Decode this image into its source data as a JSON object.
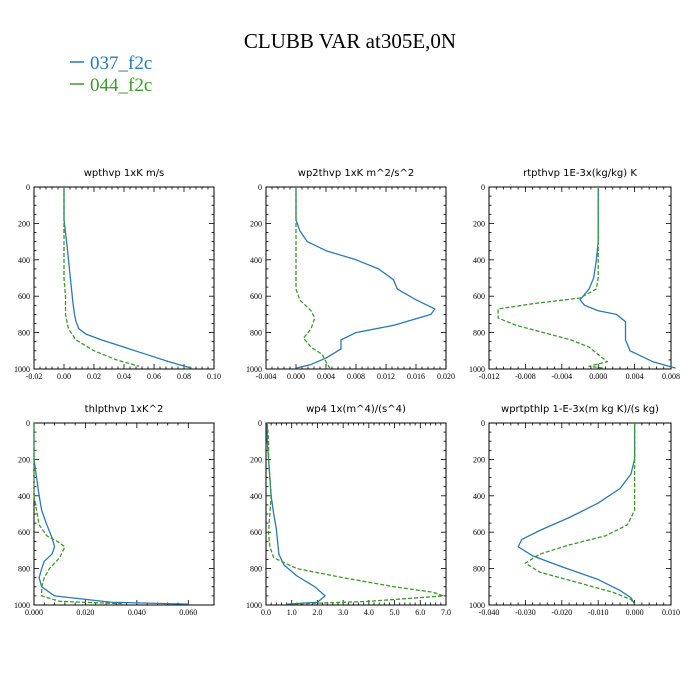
{
  "page": {
    "title": "CLUBB VAR at305E,0N"
  },
  "legend": [
    {
      "label": "037_f2c",
      "color": "#2a78b4"
    },
    {
      "label": "044_f2c",
      "color": "#3a9a2a"
    }
  ],
  "chart_data": [
    {
      "type": "line",
      "title": "wpthvp   1xK  m/s",
      "xlim": [
        -0.02,
        0.1
      ],
      "ylim": [
        1000,
        0
      ],
      "xticks": [
        -0.02,
        0.0,
        0.02,
        0.04,
        0.06,
        0.08,
        0.1
      ],
      "xtick_labels": [
        "-0.02",
        "0.00",
        "0.02",
        "0.04",
        "0.06",
        "0.08",
        "0.10"
      ],
      "yticks": [
        0,
        200,
        400,
        600,
        800,
        1000
      ],
      "ytick_labels": [
        "0",
        "200",
        "400",
        "600",
        "800",
        "1000"
      ],
      "series": [
        {
          "name": "037_f2c",
          "color": "#2a78b4",
          "dash": false,
          "points": [
            [
              0.0,
              0
            ],
            [
              0.0,
              100
            ],
            [
              0.0,
              180
            ],
            [
              0.001,
              250
            ],
            [
              0.002,
              320
            ],
            [
              0.003,
              400
            ],
            [
              0.004,
              480
            ],
            [
              0.005,
              560
            ],
            [
              0.006,
              640
            ],
            [
              0.007,
              700
            ],
            [
              0.008,
              740
            ],
            [
              0.01,
              780
            ],
            [
              0.015,
              810
            ],
            [
              0.025,
              840
            ],
            [
              0.04,
              880
            ],
            [
              0.055,
              920
            ],
            [
              0.07,
              960
            ],
            [
              0.085,
              995
            ]
          ]
        },
        {
          "name": "044_f2c",
          "color": "#3a9a2a",
          "dash": true,
          "points": [
            [
              0.0,
              0
            ],
            [
              0.0,
              100
            ],
            [
              0.0,
              200
            ],
            [
              0.0,
              300
            ],
            [
              0.0,
              400
            ],
            [
              0.0,
              500
            ],
            [
              0.001,
              600
            ],
            [
              0.001,
              700
            ],
            [
              0.003,
              780
            ],
            [
              0.008,
              840
            ],
            [
              0.02,
              900
            ],
            [
              0.035,
              950
            ],
            [
              0.05,
              985
            ]
          ]
        }
      ]
    },
    {
      "type": "line",
      "title": "wp2thvp   1xK  m^2/s^2",
      "xlim": [
        -0.004,
        0.02
      ],
      "ylim": [
        1000,
        0
      ],
      "xticks": [
        -0.004,
        0.0,
        0.004,
        0.008,
        0.012,
        0.016,
        0.02
      ],
      "xtick_labels": [
        "-0.004",
        "0.000",
        "0.004",
        "0.008",
        "0.012",
        "0.016",
        "0.020"
      ],
      "yticks": [
        0,
        200,
        400,
        600,
        800,
        1000
      ],
      "ytick_labels": [
        "0",
        "200",
        "400",
        "600",
        "800",
        "1000"
      ],
      "series": [
        {
          "name": "037_f2c",
          "color": "#2a78b4",
          "dash": false,
          "points": [
            [
              0.0,
              0
            ],
            [
              0.0,
              100
            ],
            [
              0.0,
              180
            ],
            [
              0.0005,
              240
            ],
            [
              0.0015,
              300
            ],
            [
              0.004,
              350
            ],
            [
              0.008,
              400
            ],
            [
              0.011,
              450
            ],
            [
              0.013,
              510
            ],
            [
              0.0135,
              560
            ],
            [
              0.016,
              620
            ],
            [
              0.0185,
              670
            ],
            [
              0.018,
              700
            ],
            [
              0.013,
              760
            ],
            [
              0.008,
              800
            ],
            [
              0.006,
              840
            ],
            [
              0.006,
              890
            ],
            [
              0.004,
              940
            ],
            [
              0.002,
              975
            ],
            [
              0.0,
              995
            ]
          ]
        },
        {
          "name": "044_f2c",
          "color": "#3a9a2a",
          "dash": true,
          "points": [
            [
              0.0,
              0
            ],
            [
              0.0,
              100
            ],
            [
              0.0,
              200
            ],
            [
              0.0,
              300
            ],
            [
              0.0,
              400
            ],
            [
              0.0,
              500
            ],
            [
              0.0,
              560
            ],
            [
              0.0005,
              620
            ],
            [
              0.002,
              680
            ],
            [
              0.0025,
              720
            ],
            [
              0.002,
              780
            ],
            [
              0.001,
              830
            ],
            [
              0.002,
              880
            ],
            [
              0.0035,
              920
            ],
            [
              0.004,
              960
            ],
            [
              0.0045,
              995
            ]
          ]
        }
      ]
    },
    {
      "type": "line",
      "title": "rtpthvp   1E-3x(kg/kg) K",
      "xlim": [
        -0.012,
        0.008
      ],
      "ylim": [
        1000,
        0
      ],
      "xticks": [
        -0.012,
        -0.008,
        -0.004,
        0.0,
        0.004,
        0.008
      ],
      "xtick_labels": [
        "-0.012",
        "-0.008",
        "-0.004",
        "0.000",
        "0.004",
        "0.008"
      ],
      "yticks": [
        0,
        200,
        400,
        600,
        800,
        1000
      ],
      "ytick_labels": [
        "0",
        "200",
        "400",
        "600",
        "800",
        "1000"
      ],
      "series": [
        {
          "name": "037_f2c",
          "color": "#2a78b4",
          "dash": false,
          "points": [
            [
              0.0,
              0
            ],
            [
              0.0,
              100
            ],
            [
              0.0,
              200
            ],
            [
              0.0,
              300
            ],
            [
              -0.0002,
              400
            ],
            [
              -0.0005,
              500
            ],
            [
              -0.001,
              560
            ],
            [
              -0.002,
              620
            ],
            [
              -0.0015,
              650
            ],
            [
              0.0,
              680
            ],
            [
              0.002,
              700
            ],
            [
              0.003,
              740
            ],
            [
              0.003,
              780
            ],
            [
              0.003,
              840
            ],
            [
              0.0035,
              900
            ],
            [
              0.006,
              960
            ],
            [
              0.0085,
              995
            ]
          ]
        },
        {
          "name": "044_f2c",
          "color": "#3a9a2a",
          "dash": true,
          "points": [
            [
              0.0,
              0
            ],
            [
              0.0,
              100
            ],
            [
              0.0,
              200
            ],
            [
              0.0,
              300
            ],
            [
              0.0,
              400
            ],
            [
              0.0,
              500
            ],
            [
              -0.0002,
              560
            ],
            [
              -0.002,
              610
            ],
            [
              -0.007,
              640
            ],
            [
              -0.011,
              670
            ],
            [
              -0.011,
              720
            ],
            [
              -0.009,
              760
            ],
            [
              -0.006,
              800
            ],
            [
              -0.003,
              840
            ],
            [
              -0.001,
              880
            ],
            [
              0.0,
              920
            ],
            [
              0.001,
              960
            ],
            [
              -0.001,
              985
            ],
            [
              0.0005,
              995
            ]
          ]
        }
      ]
    },
    {
      "type": "line",
      "title": "thlpthvp   1xK^2",
      "xlim": [
        0.0,
        0.07
      ],
      "ylim": [
        1000,
        0
      ],
      "xticks": [
        0.0,
        0.02,
        0.04,
        0.06
      ],
      "xtick_labels": [
        "0.000",
        "0.020",
        "0.040",
        "0.060"
      ],
      "yticks": [
        0,
        200,
        400,
        600,
        800,
        1000
      ],
      "ytick_labels": [
        "0",
        "200",
        "400",
        "600",
        "800",
        "1000"
      ],
      "series": [
        {
          "name": "037_f2c",
          "color": "#2a78b4",
          "dash": false,
          "points": [
            [
              0.0,
              0
            ],
            [
              0.0,
              200
            ],
            [
              0.001,
              300
            ],
            [
              0.002,
              400
            ],
            [
              0.003,
              480
            ],
            [
              0.005,
              560
            ],
            [
              0.007,
              630
            ],
            [
              0.008,
              680
            ],
            [
              0.007,
              720
            ],
            [
              0.004,
              760
            ],
            [
              0.003,
              800
            ],
            [
              0.002,
              850
            ],
            [
              0.003,
              900
            ],
            [
              0.008,
              950
            ],
            [
              0.03,
              985
            ],
            [
              0.06,
              995
            ]
          ]
        },
        {
          "name": "044_f2c",
          "color": "#3a9a2a",
          "dash": true,
          "points": [
            [
              0.0,
              0
            ],
            [
              0.0,
              200
            ],
            [
              0.0,
              300
            ],
            [
              0.0,
              400
            ],
            [
              0.001,
              480
            ],
            [
              0.002,
              560
            ],
            [
              0.005,
              620
            ],
            [
              0.009,
              650
            ],
            [
              0.012,
              680
            ],
            [
              0.01,
              740
            ],
            [
              0.006,
              800
            ],
            [
              0.004,
              850
            ],
            [
              0.003,
              900
            ],
            [
              0.003,
              950
            ],
            [
              0.01,
              980
            ],
            [
              0.035,
              993
            ]
          ]
        }
      ]
    },
    {
      "type": "line",
      "title": "wp4   1x(m^4)/(s^4)",
      "xlim": [
        0.0,
        7.0
      ],
      "ylim": [
        1000,
        0
      ],
      "xticks": [
        0.0,
        1.0,
        2.0,
        3.0,
        4.0,
        5.0,
        6.0,
        7.0
      ],
      "xtick_labels": [
        "0.0",
        "1.0",
        "2.0",
        "3.0",
        "4.0",
        "5.0",
        "6.0",
        "7.0"
      ],
      "yticks": [
        0,
        200,
        400,
        600,
        800,
        1000
      ],
      "ytick_labels": [
        "0",
        "200",
        "400",
        "600",
        "800",
        "1000"
      ],
      "series": [
        {
          "name": "037_f2c",
          "color": "#2a78b4",
          "dash": false,
          "points": [
            [
              0.05,
              0
            ],
            [
              0.05,
              100
            ],
            [
              0.1,
              200
            ],
            [
              0.15,
              300
            ],
            [
              0.2,
              400
            ],
            [
              0.3,
              500
            ],
            [
              0.4,
              580
            ],
            [
              0.45,
              650
            ],
            [
              0.5,
              720
            ],
            [
              0.7,
              780
            ],
            [
              1.2,
              840
            ],
            [
              1.9,
              900
            ],
            [
              2.3,
              950
            ],
            [
              2.0,
              985
            ],
            [
              0.8,
              995
            ]
          ]
        },
        {
          "name": "044_f2c",
          "color": "#3a9a2a",
          "dash": true,
          "points": [
            [
              0.05,
              0
            ],
            [
              0.1,
              100
            ],
            [
              0.1,
              200
            ],
            [
              0.15,
              300
            ],
            [
              0.2,
              400
            ],
            [
              0.15,
              500
            ],
            [
              0.1,
              600
            ],
            [
              0.15,
              680
            ],
            [
              0.3,
              740
            ],
            [
              1.2,
              800
            ],
            [
              3.0,
              850
            ],
            [
              5.0,
              900
            ],
            [
              6.5,
              930
            ],
            [
              6.9,
              950
            ],
            [
              4.0,
              980
            ],
            [
              1.0,
              995
            ]
          ]
        }
      ]
    },
    {
      "type": "line",
      "title": "wprtpthlp   1-E-3x(m kg K)/(s kg)",
      "xlim": [
        -0.04,
        0.01
      ],
      "ylim": [
        1000,
        0
      ],
      "xticks": [
        -0.04,
        -0.03,
        -0.02,
        -0.01,
        0.0,
        0.01
      ],
      "xtick_labels": [
        "-0.040",
        "-0.030",
        "-0.020",
        "-0.010",
        "0.000",
        "0.010"
      ],
      "yticks": [
        0,
        200,
        400,
        600,
        800,
        1000
      ],
      "ytick_labels": [
        "0",
        "200",
        "400",
        "600",
        "800",
        "1000"
      ],
      "series": [
        {
          "name": "037_f2c",
          "color": "#2a78b4",
          "dash": false,
          "points": [
            [
              0.0,
              0
            ],
            [
              0.0,
              100
            ],
            [
              0.0,
              200
            ],
            [
              -0.001,
              280
            ],
            [
              -0.004,
              360
            ],
            [
              -0.01,
              440
            ],
            [
              -0.018,
              520
            ],
            [
              -0.026,
              590
            ],
            [
              -0.031,
              640
            ],
            [
              -0.032,
              680
            ],
            [
              -0.028,
              730
            ],
            [
              -0.02,
              790
            ],
            [
              -0.01,
              860
            ],
            [
              -0.004,
              920
            ],
            [
              -0.001,
              960
            ],
            [
              0.0,
              995
            ]
          ]
        },
        {
          "name": "044_f2c",
          "color": "#3a9a2a",
          "dash": true,
          "points": [
            [
              0.0,
              0
            ],
            [
              0.0,
              100
            ],
            [
              0.0,
              200
            ],
            [
              0.0,
              300
            ],
            [
              0.0,
              400
            ],
            [
              0.0,
              480
            ],
            [
              -0.002,
              560
            ],
            [
              -0.008,
              620
            ],
            [
              -0.018,
              670
            ],
            [
              -0.026,
              720
            ],
            [
              -0.03,
              770
            ],
            [
              -0.026,
              820
            ],
            [
              -0.015,
              880
            ],
            [
              -0.006,
              930
            ],
            [
              -0.001,
              970
            ],
            [
              0.0,
              995
            ]
          ]
        }
      ]
    }
  ]
}
